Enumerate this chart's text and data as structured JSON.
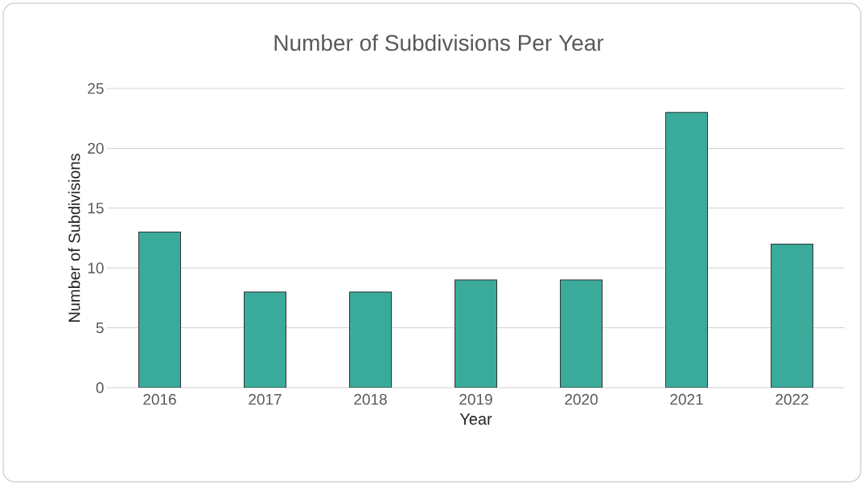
{
  "chart_data": {
    "type": "bar",
    "title": "Number of Subdivisions Per Year",
    "xlabel": "Year",
    "ylabel": "Number of Subdivisions",
    "categories": [
      "2016",
      "2017",
      "2018",
      "2019",
      "2020",
      "2021",
      "2022"
    ],
    "values": [
      13,
      8,
      8,
      9,
      9,
      23,
      12
    ],
    "color": "#3aab9b",
    "ylim": [
      0,
      25
    ],
    "yticks": [
      0,
      5,
      10,
      15,
      20,
      25
    ],
    "grid": "y"
  }
}
